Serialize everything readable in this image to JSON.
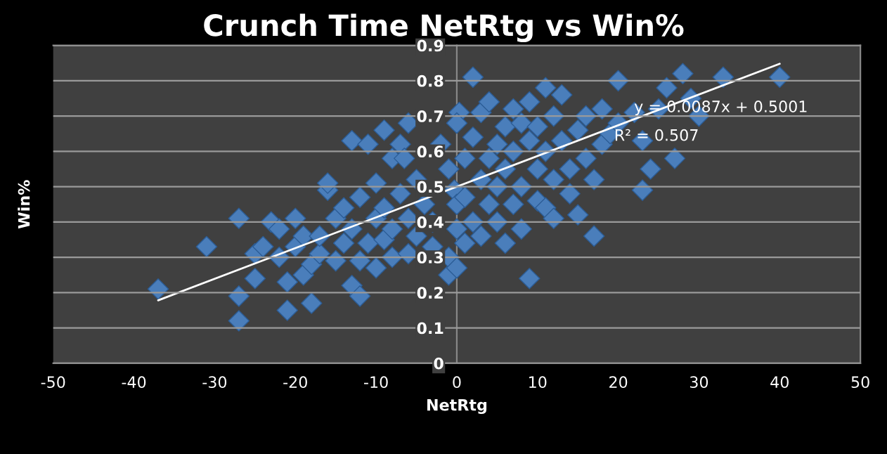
{
  "chart_data": {
    "type": "scatter",
    "title": "Crunch Time NetRtg vs Win%",
    "xlabel": "NetRtg",
    "ylabel": "Win%",
    "xlim": [
      -50,
      50
    ],
    "xticks": [
      -50,
      -40,
      -30,
      -20,
      -10,
      0,
      10,
      20,
      30,
      40,
      50
    ],
    "ylim": [
      0,
      0.9
    ],
    "yticks": [
      0,
      0.1,
      0.2,
      0.3,
      0.4,
      0.5,
      0.6,
      0.7,
      0.8,
      0.9
    ],
    "grid": "y",
    "legend": false,
    "annotations": [
      "y = 0.0087x + 0.5001",
      "R² = 0.507"
    ],
    "series": [
      {
        "marker": "diamond",
        "color": "#4a7ebb",
        "x": [
          -37,
          -31,
          -27,
          -27,
          -27,
          -25,
          -25,
          -24,
          -23,
          -22,
          -22,
          -21,
          -21,
          -20,
          -20,
          -19,
          -19,
          -18,
          -18,
          -17,
          -17,
          -16,
          -16,
          -15,
          -15,
          -14,
          -14,
          -13,
          -13,
          -13,
          -12,
          -12,
          -12,
          -11,
          -11,
          -10,
          -10,
          -10,
          -9,
          -9,
          -9,
          -8,
          -8,
          -8,
          -7,
          -7,
          -6,
          -6,
          -6,
          -5,
          -5,
          -4,
          -6.5,
          -3,
          0.3,
          -3,
          -0.3,
          -2,
          -1,
          -1,
          -1,
          0,
          0,
          0,
          0,
          1,
          1,
          1,
          2,
          2,
          2,
          3,
          3,
          3,
          4,
          4,
          4,
          5,
          5,
          5,
          6,
          6,
          6,
          7,
          7,
          7,
          8,
          8,
          8,
          9,
          9,
          9,
          10,
          10,
          10,
          11,
          11,
          11,
          12,
          12,
          12,
          13,
          13,
          14,
          14,
          15,
          15,
          16,
          16,
          17,
          17,
          18,
          18,
          19,
          20,
          20,
          22,
          23,
          23,
          24,
          25,
          26,
          27,
          28,
          29,
          30,
          33,
          40
        ],
        "values": [
          0.21,
          0.33,
          0.12,
          0.19,
          0.41,
          0.24,
          0.31,
          0.33,
          0.4,
          0.3,
          0.38,
          0.15,
          0.23,
          0.41,
          0.33,
          0.25,
          0.36,
          0.28,
          0.17,
          0.31,
          0.36,
          0.49,
          0.51,
          0.29,
          0.41,
          0.34,
          0.44,
          0.63,
          0.22,
          0.38,
          0.19,
          0.29,
          0.47,
          0.62,
          0.34,
          0.51,
          0.41,
          0.27,
          0.66,
          0.35,
          0.44,
          0.58,
          0.3,
          0.38,
          0.48,
          0.62,
          0.68,
          0.31,
          0.41,
          0.52,
          0.36,
          0.45,
          0.58,
          0.33,
          0.71,
          0.4,
          0.49,
          0.62,
          0.25,
          0.55,
          0.3,
          0.27,
          0.45,
          0.38,
          0.68,
          0.58,
          0.34,
          0.47,
          0.81,
          0.64,
          0.4,
          0.52,
          0.71,
          0.36,
          0.58,
          0.45,
          0.74,
          0.62,
          0.4,
          0.5,
          0.67,
          0.34,
          0.55,
          0.72,
          0.45,
          0.6,
          0.5,
          0.68,
          0.38,
          0.24,
          0.63,
          0.74,
          0.55,
          0.46,
          0.67,
          0.78,
          0.44,
          0.6,
          0.52,
          0.7,
          0.41,
          0.63,
          0.76,
          0.55,
          0.48,
          0.66,
          0.42,
          0.58,
          0.7,
          0.36,
          0.52,
          0.72,
          0.62,
          0.65,
          0.8,
          0.68,
          0.71,
          0.63,
          0.49,
          0.55,
          0.72,
          0.78,
          0.58,
          0.82,
          0.75,
          0.7,
          0.81,
          0.81
        ]
      },
      {
        "type": "line",
        "marker": "none",
        "color": "#ffffff",
        "x": [
          -37,
          40
        ],
        "values": [
          0.178,
          0.848
        ]
      }
    ]
  }
}
